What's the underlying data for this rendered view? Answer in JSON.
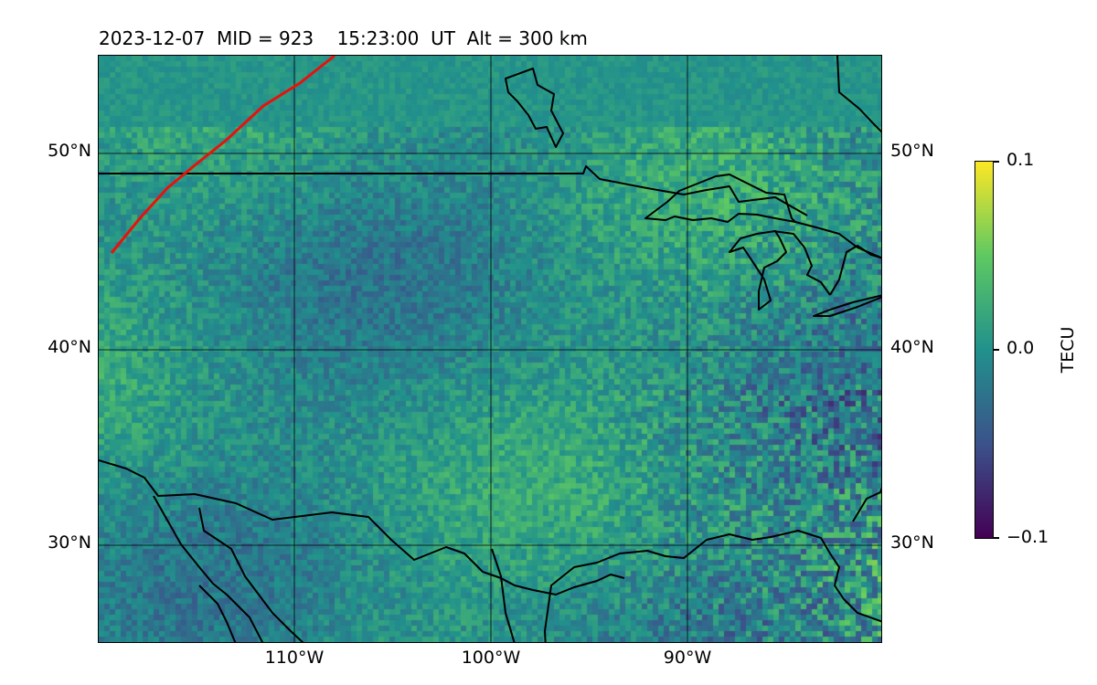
{
  "title": "2023-12-07  MID = 923    15:23:00  UT  Alt = 300 km",
  "map": {
    "lat_ticks": [
      "50°N",
      "40°N",
      "30°N"
    ],
    "lon_ticks": [
      "110°W",
      "100°W",
      "90°W"
    ],
    "lat_range": [
      25,
      55
    ],
    "lon_range": [
      -120,
      -80
    ],
    "field": "TECU differential map",
    "track_color": "#e8120c"
  },
  "colorbar": {
    "label": "TECU",
    "max_label": "0.1",
    "mid_label": "0.0",
    "min_label": "−0.1",
    "colormap": "viridis",
    "colors": [
      "#440154",
      "#3b528b",
      "#21918c",
      "#5ec962",
      "#fde725"
    ]
  }
}
